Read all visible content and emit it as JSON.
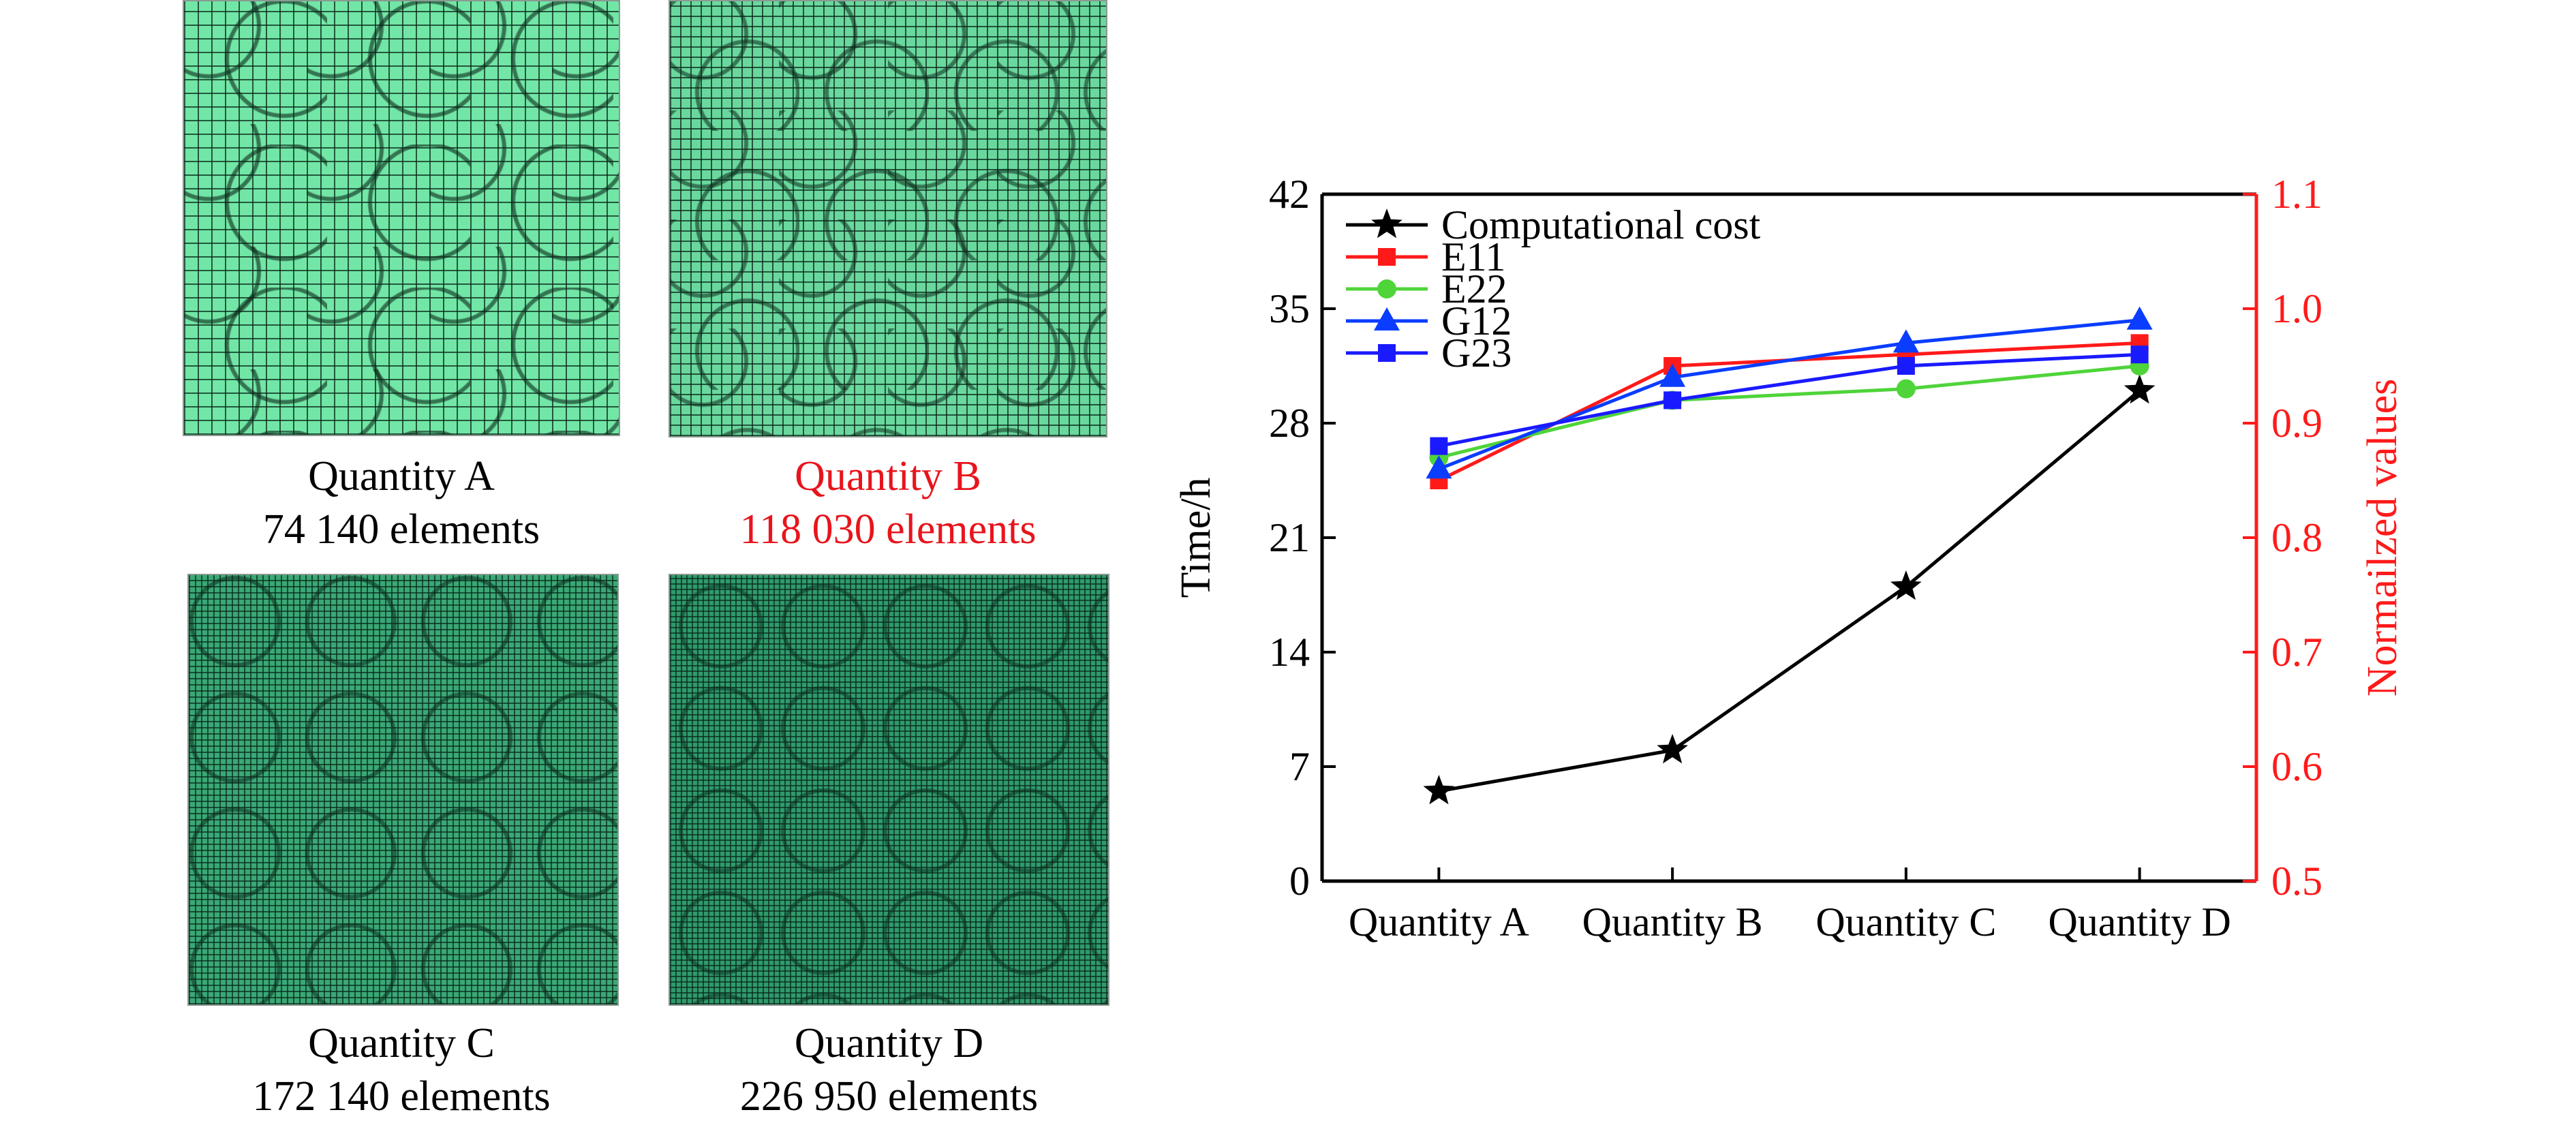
{
  "meshes": [
    {
      "label": "Quantity A",
      "elements": "74 140 elements",
      "highlight": false
    },
    {
      "label": "Quantity B",
      "elements": "118 030 elements",
      "highlight": true
    },
    {
      "label": "Quantity C",
      "elements": "172 140 elements",
      "highlight": false
    },
    {
      "label": "Quantity D",
      "elements": "226 950 elements",
      "highlight": false
    }
  ],
  "chart_data": {
    "type": "line",
    "title": "",
    "categories": [
      "Quantity A",
      "Quantity B",
      "Quantity C",
      "Quantity D"
    ],
    "xlabel": "",
    "ylabel": "Time/h",
    "ylabel_right": "Normailzed values",
    "ylim": [
      0,
      42
    ],
    "yticks": [
      "0",
      "7",
      "14",
      "21",
      "28",
      "35",
      "42"
    ],
    "ylim_right": [
      0.5,
      1.1
    ],
    "yticks_right": [
      "0.5",
      "0.6",
      "0.7",
      "0.8",
      "0.9",
      "1.0",
      "1.1"
    ],
    "grid": false,
    "legend_position": "top-left",
    "colors": {
      "left_axis": "#000000",
      "right_axis": "#ff1a1a"
    },
    "series": [
      {
        "name": "Computational cost",
        "axis": "left",
        "color": "#000000",
        "marker": "star",
        "values": [
          5.5,
          8.0,
          18.0,
          30.0
        ]
      },
      {
        "name": "E11",
        "axis": "right",
        "color": "#ff1a1a",
        "marker": "square",
        "values": [
          0.85,
          0.95,
          0.96,
          0.97
        ]
      },
      {
        "name": "E22",
        "axis": "right",
        "color": "#4fd43a",
        "marker": "circle",
        "values": [
          0.87,
          0.92,
          0.93,
          0.95
        ]
      },
      {
        "name": "G12",
        "axis": "right",
        "color": "#0a3dff",
        "marker": "triangle",
        "values": [
          0.86,
          0.94,
          0.97,
          0.99
        ]
      },
      {
        "name": "G23",
        "axis": "right",
        "color": "#1a1aff",
        "marker": "square",
        "values": [
          0.88,
          0.92,
          0.95,
          0.96
        ]
      }
    ]
  }
}
